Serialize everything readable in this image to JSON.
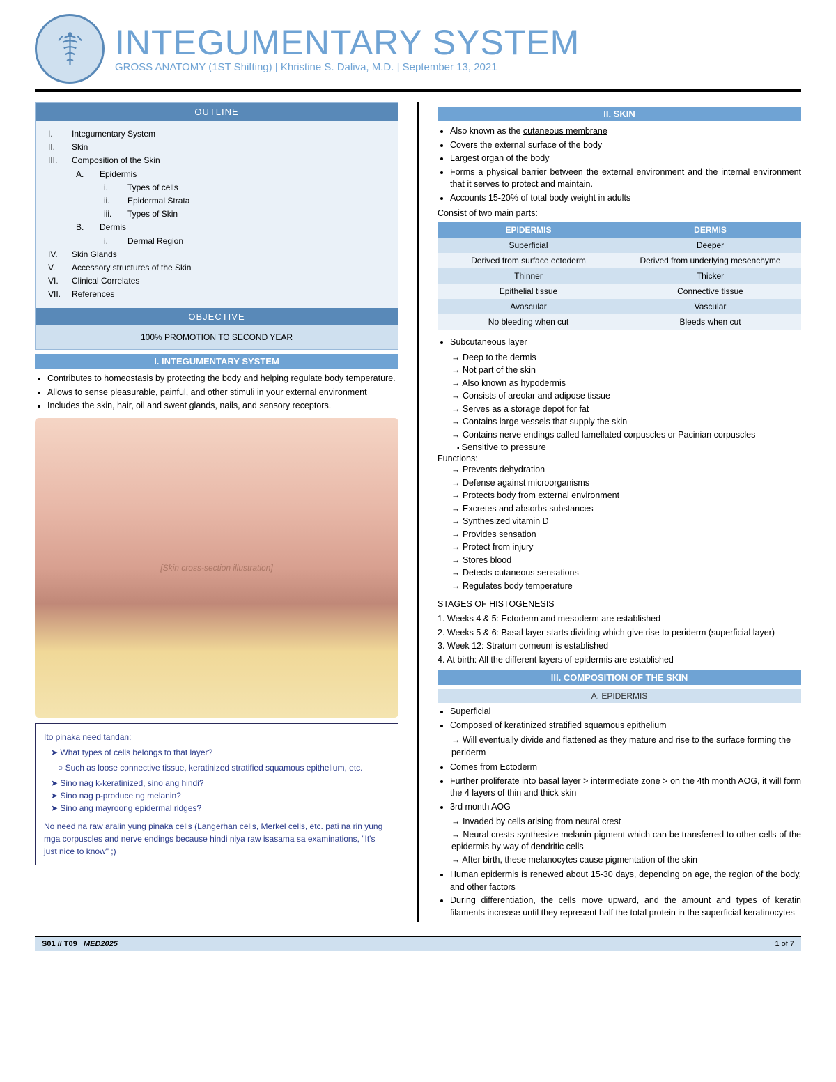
{
  "header": {
    "title": "INTEGUMENTARY SYSTEM",
    "subtitle": "GROSS ANATOMY (1ST Shifting) | Khristine S. Daliva, M.D. | September 13, 2021"
  },
  "outline": {
    "title": "OUTLINE",
    "items": [
      {
        "num": "I.",
        "text": "Integumentary System",
        "lvl": "l1"
      },
      {
        "num": "II.",
        "text": "Skin",
        "lvl": "l1"
      },
      {
        "num": "III.",
        "text": "Composition of the Skin",
        "lvl": "l1"
      },
      {
        "num": "A.",
        "text": "Epidermis",
        "lvl": "l2"
      },
      {
        "num": "i.",
        "text": "Types of cells",
        "lvl": "l3"
      },
      {
        "num": "ii.",
        "text": "Epidermal Strata",
        "lvl": "l3"
      },
      {
        "num": "iii.",
        "text": "Types of Skin",
        "lvl": "l3"
      },
      {
        "num": "B.",
        "text": "Dermis",
        "lvl": "l2"
      },
      {
        "num": "i.",
        "text": "Dermal Region",
        "lvl": "l3"
      },
      {
        "num": "IV.",
        "text": "Skin Glands",
        "lvl": "l1"
      },
      {
        "num": "V.",
        "text": "Accessory structures of the Skin",
        "lvl": "l1"
      },
      {
        "num": "VI.",
        "text": "Clinical Correlates",
        "lvl": "l1"
      },
      {
        "num": "VII.",
        "text": "References",
        "lvl": "l1"
      }
    ]
  },
  "objective": {
    "title": "OBJECTIVE",
    "body": "100% PROMOTION TO SECOND YEAR"
  },
  "s1": {
    "title": "I. INTEGUMENTARY SYSTEM",
    "bullets": [
      "Contributes to homeostasis by protecting the body and helping regulate body temperature.",
      "Allows to sense pleasurable, painful, and other stimuli in your external environment",
      "Includes the skin, hair, oil and sweat glands, nails, and sensory receptors."
    ]
  },
  "figure_alt": "[Skin cross-section illustration]",
  "notes": {
    "title": "Ito pinaka need tandan:",
    "items": [
      "What types of cells belongs to that layer?",
      "Sino nag k-keratinized, sino ang hindi?",
      "Sino nag p-produce ng melanin?",
      "Sino ang mayroong epidermal ridges?"
    ],
    "sub": "Such as loose connective tissue, keratinized stratified squamous epithelium, etc.",
    "para": "No need na raw aralin yung pinaka cells (Langerhan cells, Merkel cells, etc. pati na rin yung mga corpuscles and nerve endings because hindi niya raw isasama sa examinations, \"It's just nice to know\" ;)"
  },
  "s2": {
    "title": "II. SKIN",
    "bullets": [
      "Also known as the cutaneous membrane",
      "Covers the external surface of the body",
      "Largest organ of the body",
      "Forms a physical barrier between the external environment and the internal environment that it serves to protect and maintain.",
      "Accounts 15-20% of total body weight in adults"
    ],
    "consist": "Consist of two main parts:",
    "table": {
      "headers": [
        "EPIDERMIS",
        "DERMIS"
      ],
      "rows": [
        [
          "Superficial",
          "Deeper"
        ],
        [
          "Derived from surface ectoderm",
          "Derived from underlying mesenchyme"
        ],
        [
          "Thinner",
          "Thicker"
        ],
        [
          "Epithelial tissue",
          "Connective tissue"
        ],
        [
          "Avascular",
          "Vascular"
        ],
        [
          "No bleeding when cut",
          "Bleeds when cut"
        ]
      ]
    },
    "subc_title": "Subcutaneous layer",
    "subc": [
      "Deep to the dermis",
      "Not part of the skin",
      "Also known as hypodermis",
      "Consists of areolar and adipose tissue",
      "Serves as a storage depot for fat",
      "Contains large vessels that supply the skin",
      "Contains nerve endings called lamellated corpuscles or Pacinian corpuscles"
    ],
    "subc_sub": "Sensitive to pressure",
    "func_title": "Functions:",
    "func": [
      "Prevents dehydration",
      "Defense against microorganisms",
      "Protects body from external environment",
      "Excretes and absorbs substances",
      "Synthesized vitamin D",
      "Provides sensation",
      "Protect from injury",
      "Stores blood",
      "Detects cutaneous sensations",
      "Regulates body temperature"
    ],
    "stages_title": "STAGES OF HISTOGENESIS",
    "stages": [
      "1. Weeks 4 & 5: Ectoderm and mesoderm are established",
      "2. Weeks 5 & 6: Basal layer starts dividing which give rise to periderm (superficial layer)",
      "3. Week 12: Stratum corneum is established",
      "4. At birth: All the different layers of epidermis are established"
    ]
  },
  "s3": {
    "title": "III. COMPOSITION OF THE SKIN",
    "sub_a": "A.   EPIDERMIS",
    "b1": "Superficial",
    "b2": "Composed of keratinized stratified squamous epithelium",
    "b2a": "Will eventually divide and flattened as they mature and rise to the surface forming the periderm",
    "b3": "Comes from Ectoderm",
    "b4": "Further proliferate into basal layer > intermediate zone > on the 4th month AOG, it will form the 4 layers of thin and thick skin",
    "b5": "3rd month AOG",
    "b5a": "Invaded by cells arising from neural crest",
    "b5b": "Neural crests synthesize melanin pigment which can be transferred to other cells of the epidermis by way of dendritic cells",
    "b5c": "After birth, these melanocytes cause pigmentation of the skin",
    "b6": "Human epidermis is renewed about 15-30 days, depending on age, the region of the body, and other factors",
    "b7": "During differentiation, the cells move upward, and the amount and types of keratin filaments increase until they represent half the total protein in the superficial keratinocytes"
  },
  "footer": {
    "left": "S01 // T09",
    "mid": "MED2025",
    "right": "1 of 7"
  }
}
